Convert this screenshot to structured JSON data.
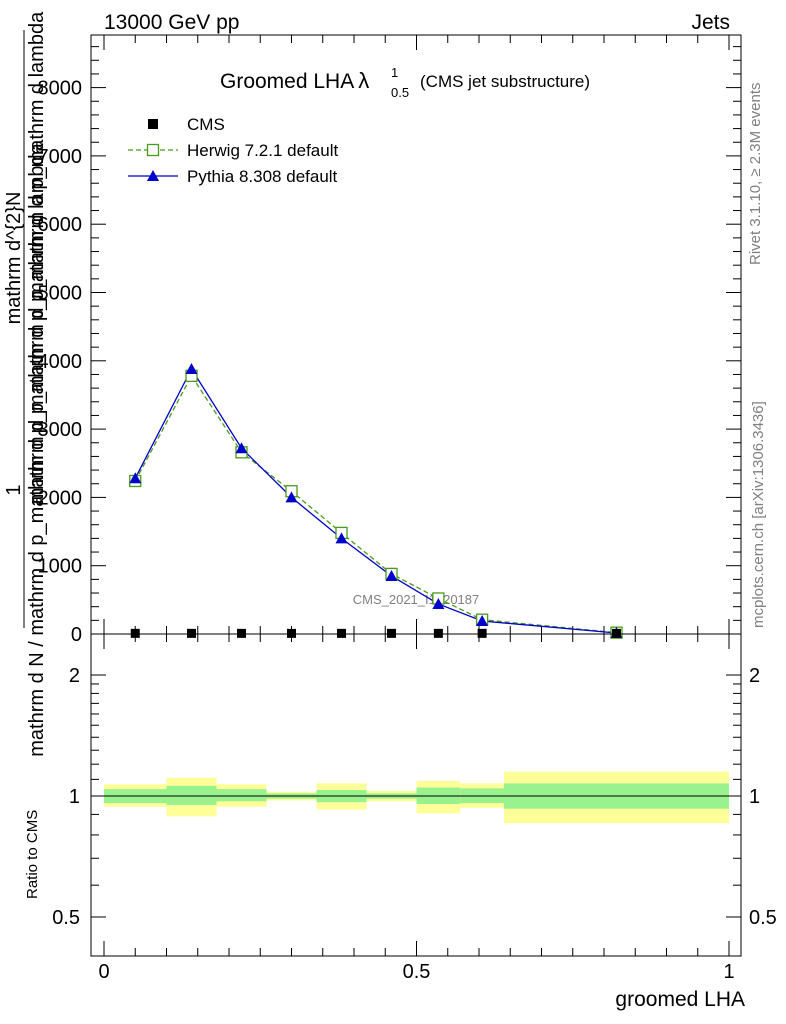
{
  "header": {
    "left": "13000 GeV pp",
    "right": "Jets"
  },
  "side": {
    "rivet": "Rivet 3.1.10, ≥ 2.3M events",
    "mcplots": "mcplots.cern.ch [arXiv:1306.3436]"
  },
  "colors": {
    "herwig": "#4a9a1c",
    "pythia": "#0000cc",
    "band_inner": "#99f28e",
    "band_outer": "#ffff9a",
    "watermark": "#808080"
  },
  "chart_data": [
    {
      "type": "line",
      "title": "Groomed LHA",
      "title_symbol": "λ",
      "title_sup": "1",
      "title_sub": "0.5",
      "subtitle": "(CMS jet substructure)",
      "ylabel_num": "1",
      "ylabel_den": "mathrm d N / mathrm d p_mathrm d p_mathrm d p_mathrm d lambda",
      "ylabel_frac_num": "mathrm d^{2}N",
      "ylabel_frac_den": "mathrm d p_mathrm d p_mathrm d p_mathrm d lambda",
      "watermark": "CMS_2021_I1920187",
      "xlim": [
        0,
        1
      ],
      "ylim": [
        0,
        8800
      ],
      "yticks": [
        0,
        1000,
        2000,
        3000,
        4000,
        5000,
        6000,
        7000,
        8000
      ],
      "ytick_labels": [
        "0",
        "1000",
        "2000",
        "3000",
        "4000",
        "5000",
        "6000",
        "7000",
        "8000"
      ],
      "legend_position": "top-left",
      "series": [
        {
          "name": "CMS",
          "style": "data",
          "x": [
            0.05,
            0.14,
            0.22,
            0.3,
            0.38,
            0.46,
            0.535,
            0.605,
            0.82
          ],
          "values": [
            2,
            2,
            2,
            2,
            2,
            2,
            2,
            2,
            2
          ]
        },
        {
          "name": "Herwig 7.2.1 default",
          "style": "dashed-open-square",
          "x": [
            0.05,
            0.14,
            0.22,
            0.3,
            0.38,
            0.46,
            0.535,
            0.605,
            0.82
          ],
          "values": [
            2240,
            3780,
            2660,
            2090,
            1480,
            880,
            520,
            210,
            20
          ]
        },
        {
          "name": "Pythia 8.308 default",
          "style": "solid-filled-triangle",
          "x": [
            0.05,
            0.14,
            0.22,
            0.3,
            0.38,
            0.46,
            0.535,
            0.605,
            0.82
          ],
          "values": [
            2280,
            3880,
            2720,
            2000,
            1400,
            850,
            440,
            190,
            15
          ]
        }
      ]
    },
    {
      "type": "area",
      "ylabel": "Ratio to CMS",
      "xlabel": "groomed LHA",
      "xlim": [
        0,
        1
      ],
      "xticks": [
        0,
        0.5,
        1
      ],
      "xtick_labels": [
        "0",
        "0.5",
        "1"
      ],
      "yscale": "log",
      "ylim": [
        0.4,
        2.3
      ],
      "yticks": [
        0.5,
        1,
        2
      ],
      "ytick_labels": [
        "0.5",
        "1",
        "2"
      ],
      "reference_line": 1,
      "bins": [
        {
          "x0": 0.0,
          "x1": 0.1,
          "inner": [
            0.96,
            1.04
          ],
          "outer": [
            0.94,
            1.07
          ]
        },
        {
          "x0": 0.1,
          "x1": 0.18,
          "inner": [
            0.95,
            1.06
          ],
          "outer": [
            0.89,
            1.11
          ]
        },
        {
          "x0": 0.18,
          "x1": 0.26,
          "inner": [
            0.97,
            1.04
          ],
          "outer": [
            0.94,
            1.07
          ]
        },
        {
          "x0": 0.26,
          "x1": 0.34,
          "inner": [
            0.985,
            1.015
          ],
          "outer": [
            0.975,
            1.025
          ]
        },
        {
          "x0": 0.34,
          "x1": 0.42,
          "inner": [
            0.965,
            1.035
          ],
          "outer": [
            0.925,
            1.075
          ]
        },
        {
          "x0": 0.42,
          "x1": 0.5,
          "inner": [
            0.985,
            1.015
          ],
          "outer": [
            0.97,
            1.03
          ]
        },
        {
          "x0": 0.5,
          "x1": 0.57,
          "inner": [
            0.955,
            1.05
          ],
          "outer": [
            0.905,
            1.09
          ]
        },
        {
          "x0": 0.57,
          "x1": 0.64,
          "inner": [
            0.96,
            1.045
          ],
          "outer": [
            0.935,
            1.075
          ]
        },
        {
          "x0": 0.64,
          "x1": 1.0,
          "inner": [
            0.93,
            1.075
          ],
          "outer": [
            0.855,
            1.15
          ]
        }
      ]
    }
  ]
}
